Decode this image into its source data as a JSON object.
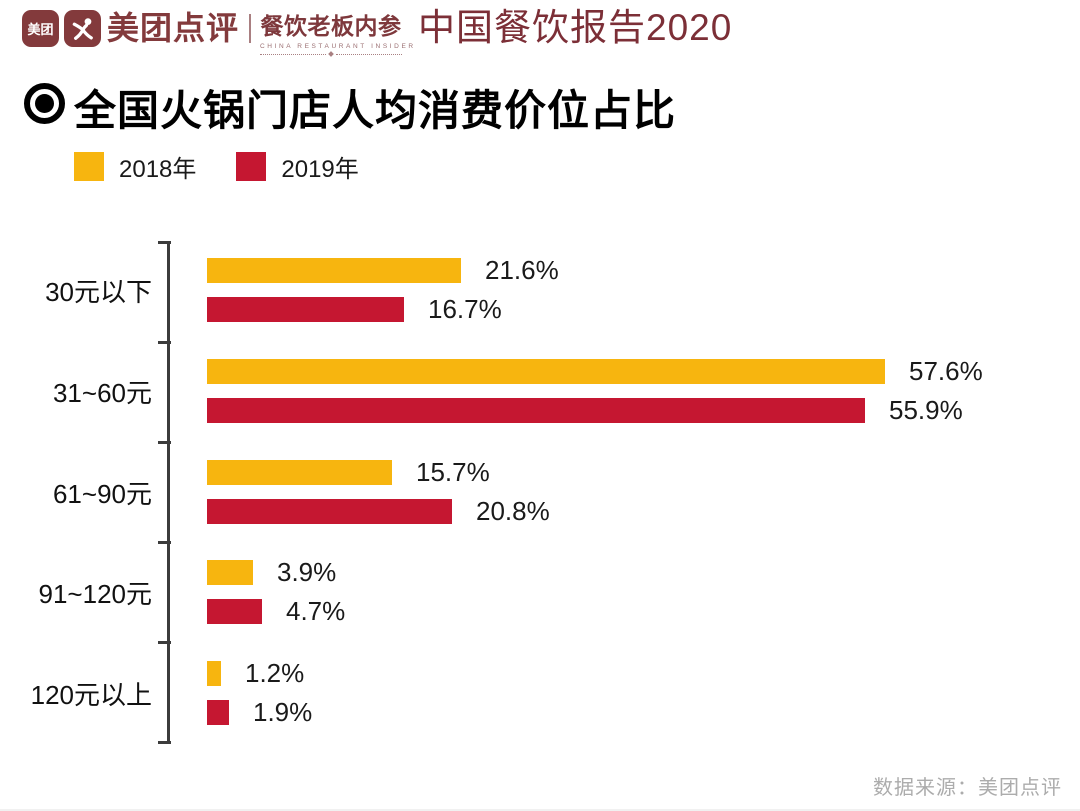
{
  "header": {
    "logo_meituan": "美团",
    "brand": "美团点评",
    "partner_cn": "餐饮老板内参",
    "partner_en": "CHINA RESTAURANT INSIDER",
    "report_title": "中国餐饮报告2020"
  },
  "section": {
    "title": "全国火锅门店人均消费价位占比"
  },
  "footer": {
    "source": "数据来源：美团点评"
  },
  "colors": {
    "brand_maroon": "#833A3C",
    "report_title_maroon": "#7C2F37",
    "bar_2018_yellow": "#F7B50F",
    "bar_2019_red": "#C51731",
    "axis_gray": "#3C3C3C",
    "source_text_gray": "#ACACAC"
  },
  "chart_data": {
    "type": "bar",
    "orientation": "horizontal",
    "title": "全国火锅门店人均消费价位占比",
    "categories": [
      "30元以下",
      "31~60元",
      "61~90元",
      "91~120元",
      "120元以上"
    ],
    "series": [
      {
        "name": "2018年",
        "color": "#F7B50F",
        "values": [
          21.6,
          57.6,
          15.7,
          3.9,
          1.2
        ]
      },
      {
        "name": "2019年",
        "color": "#C51731",
        "values": [
          16.7,
          55.9,
          20.8,
          4.7,
          1.9
        ]
      }
    ],
    "value_suffix": "%",
    "xlim": [
      0,
      60
    ],
    "grid": false,
    "legend_position": "top-left",
    "value_labels": "outside-end"
  }
}
